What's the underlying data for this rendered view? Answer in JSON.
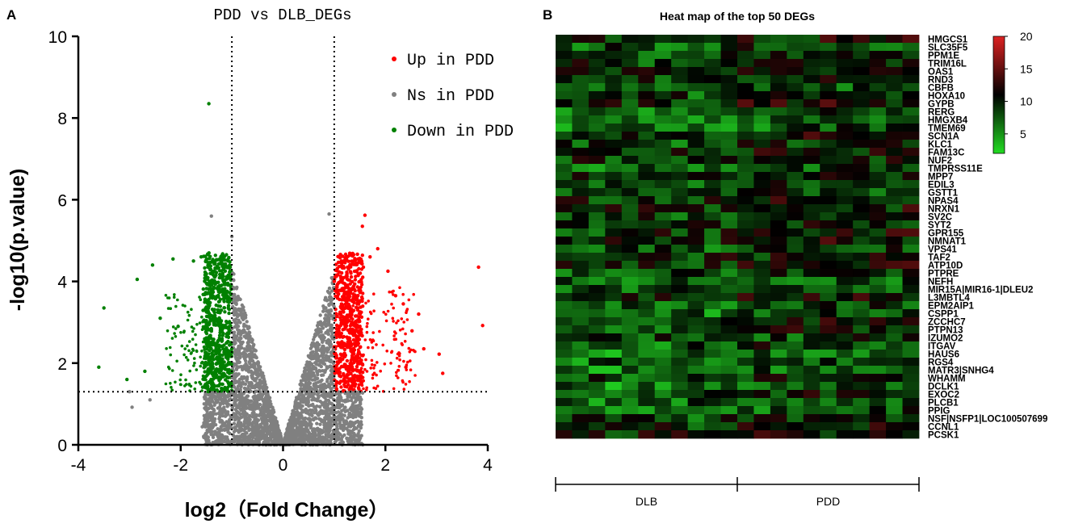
{
  "panel_a_label": "A",
  "panel_b_label": "B",
  "chart_data": [
    {
      "type": "scatter",
      "title": "PDD vs DLB_DEGs",
      "xlabel": "log2（Fold Change）",
      "ylabel": "-log10(p.value)",
      "xlim": [
        -4,
        4
      ],
      "ylim": [
        0,
        10
      ],
      "xticks": [
        "-4",
        "-2",
        "0",
        "2",
        "4"
      ],
      "yticks": [
        "0",
        "2",
        "4",
        "6",
        "8",
        "10"
      ],
      "logfc_threshold": [
        -1,
        1
      ],
      "pvalue_threshold": 1.3,
      "legend": {
        "position": "top-right",
        "entries": [
          {
            "label": "Up in PDD",
            "color": "#ff0000"
          },
          {
            "label": "Ns in PDD",
            "color": "#808080"
          },
          {
            "label": "Down in PDD",
            "color": "#008000"
          }
        ]
      },
      "series": [
        {
          "name": "Up in PDD",
          "color": "#ff0000",
          "points": [
            [
              3.82,
              4.35
            ],
            [
              3.9,
              2.92
            ],
            [
              2.52,
              2.79
            ],
            [
              3.05,
              2.22
            ],
            [
              3.12,
              1.75
            ],
            [
              2.2,
              3.65
            ],
            [
              2.65,
              3.2
            ],
            [
              1.6,
              5.62
            ],
            [
              1.55,
              5.35
            ],
            [
              2.05,
              4.25
            ],
            [
              2.35,
              3.45
            ],
            [
              2.75,
              2.35
            ],
            [
              1.85,
              4.8
            ],
            [
              2.4,
              1.9
            ],
            [
              1.7,
              4.6
            ]
          ]
        },
        {
          "name": "Ns in PDD",
          "color": "#808080",
          "points": [
            [
              -1.4,
              5.6
            ],
            [
              -1.0,
              5.1
            ],
            [
              0.9,
              5.65
            ],
            [
              -2.95,
              0.92
            ],
            [
              -3.0,
              1.3
            ],
            [
              -2.6,
              1.1
            ]
          ]
        },
        {
          "name": "Down in PDD",
          "color": "#008000",
          "points": [
            [
              -1.45,
              8.35
            ],
            [
              -3.5,
              3.35
            ],
            [
              -3.05,
              1.6
            ],
            [
              -2.85,
              4.05
            ],
            [
              -2.55,
              4.4
            ],
            [
              -2.15,
              4.55
            ],
            [
              -3.6,
              1.9
            ],
            [
              -2.4,
              3.1
            ],
            [
              -2.05,
              2.9
            ],
            [
              -1.75,
              4.5
            ],
            [
              -1.6,
              4.6
            ],
            [
              -2.7,
              1.8
            ]
          ]
        }
      ]
    },
    {
      "type": "heatmap",
      "title": "Heat map of the top 50 DEGs",
      "groups": [
        "DLB",
        "PDD"
      ],
      "n_samples": [
        11,
        11
      ],
      "colorbar": {
        "min": 2,
        "max": 20,
        "ticks": [
          "20",
          "15",
          "10",
          "5"
        ],
        "colors": [
          "#22dd22",
          "#000000",
          "#dd2222"
        ]
      },
      "genes": [
        "HMGCS1",
        "SLC35F5",
        "PPM1E",
        "TRIM16L",
        "OAS1",
        "RND3",
        "CBFB",
        "HOXA10",
        "GYPB",
        "RERG",
        "HMGXB4",
        "TMEM69",
        "SCN1A",
        "KLC1",
        "FAM13C",
        "NUF2",
        "TMPRSS11E",
        "MPP7",
        "EDIL3",
        "GSTT1",
        "NPAS4",
        "NRXN1",
        "SV2C",
        "SYT2",
        "GPR155",
        "NMNAT1",
        "VPS41",
        "TAF2",
        "ATP10D",
        "PTPRE",
        "NEFH",
        "MIR15A|MIR16-1|DLEU2",
        "L3MBTL4",
        "EPM2AIP1",
        "CSPP1",
        "ZCCHC7",
        "PTPN13",
        "IZUMO2",
        "ITGAV",
        "HAUS6",
        "RGS4",
        "MATR3|SNHG4",
        "WHAMM",
        "DCLK1",
        "EXOC2",
        "PLCB1",
        "PPIG",
        "NSF|NSFP1|LOC100507699",
        "CCNL1",
        "PCSK1"
      ]
    }
  ]
}
